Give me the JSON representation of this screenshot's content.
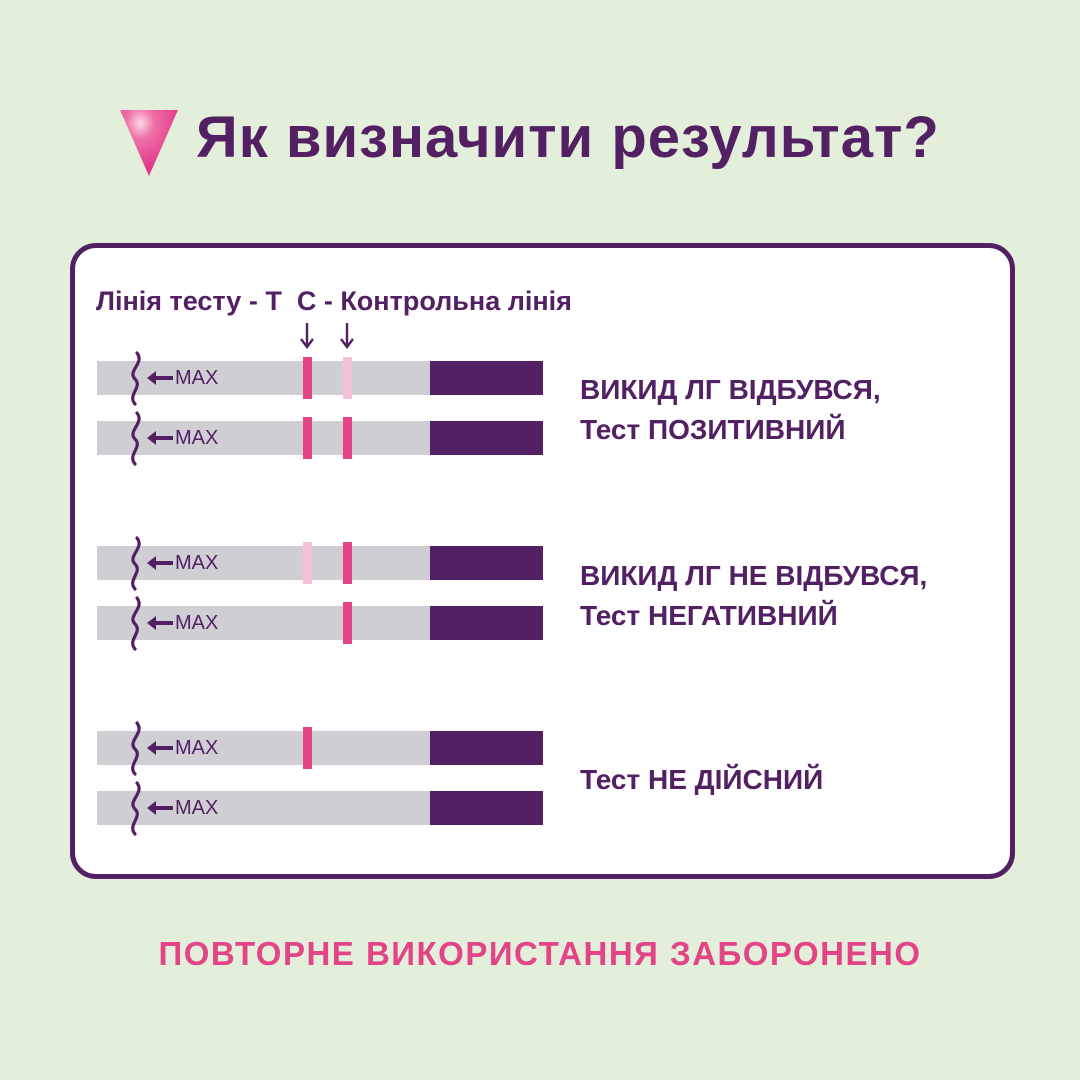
{
  "header": {
    "title": "Як визначити результат?",
    "icon": "pink-triangle-icon",
    "accent": "#e24486",
    "brand": "#522063"
  },
  "legend": {
    "test_line": "Лінія тесту - T",
    "control_line": "C - Контрольна лінія"
  },
  "strip_label": "MAX",
  "groups": [
    {
      "result_line1": "ВИКИД ЛГ ВІДБУВСЯ,",
      "result_line2": "Тест ПОЗИТИВНИЙ",
      "strips": [
        {
          "test_line": "strong",
          "control_line": "faint"
        },
        {
          "test_line": "strong",
          "control_line": "strong"
        }
      ]
    },
    {
      "result_line1": "ВИКИД ЛГ НЕ ВІДБУВСЯ,",
      "result_line2": "Тест НЕГАТИВНИЙ",
      "strips": [
        {
          "test_line": "faint",
          "control_line": "strong"
        },
        {
          "test_line": "none",
          "control_line": "strong"
        }
      ]
    },
    {
      "result_line1": "Тест НЕ ДІЙСНИЙ",
      "strips": [
        {
          "test_line": "strong",
          "control_line": "none"
        },
        {
          "test_line": "none",
          "control_line": "none"
        }
      ]
    }
  ],
  "footer": {
    "text": "ПОВТОРНЕ ВИКОРИСТАННЯ ЗАБОРОНЕНО"
  }
}
